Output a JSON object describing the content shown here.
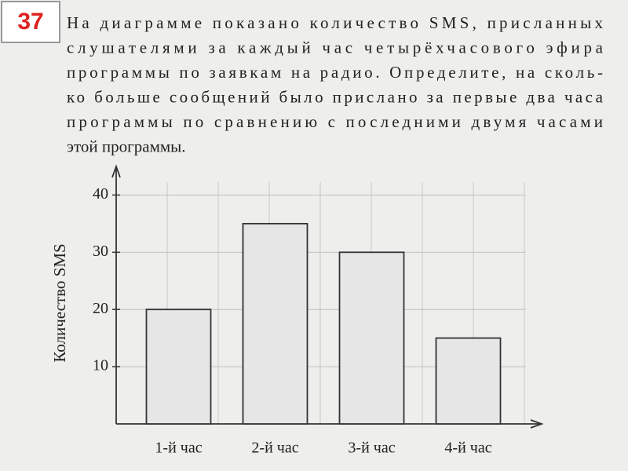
{
  "badge": "37",
  "problem": {
    "lines": [
      "На диаграмме показано количество SMS, присланных",
      "слушателями за каждый час четырёхчасового эфира",
      "программы по заявкам на радио. Определите, на сколь-",
      "ко больше сообщений было прислано за первые два часа",
      "программы по сравнению с последними двумя часами",
      "этой программы."
    ]
  },
  "chart_data": {
    "type": "bar",
    "y_label": "Количество SMS",
    "categories": [
      "1-й час",
      "2-й час",
      "3-й час",
      "4-й час"
    ],
    "values": [
      20,
      35,
      30,
      15
    ],
    "color": "#e6e6e6",
    "ylim": [
      0,
      45
    ],
    "yticks": [
      10,
      20,
      30,
      40
    ],
    "grid": true
  }
}
